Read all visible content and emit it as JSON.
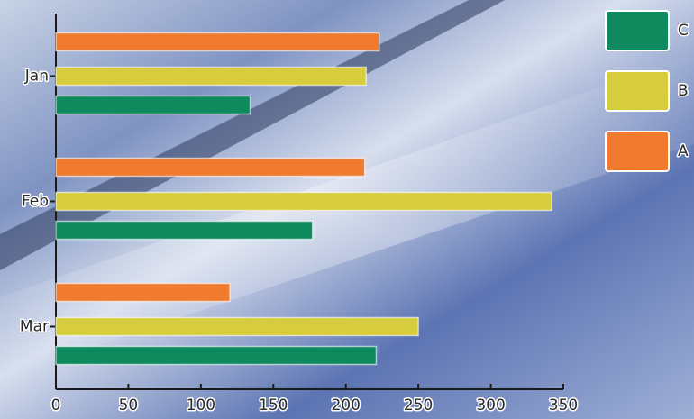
{
  "chart_data": {
    "type": "bar",
    "orientation": "horizontal",
    "categories": [
      "Jan",
      "Feb",
      "Mar"
    ],
    "series": [
      {
        "name": "A",
        "color": "#f07a2e",
        "values": [
          223,
          213,
          120
        ]
      },
      {
        "name": "B",
        "color": "#d6cc3c",
        "values": [
          214,
          342,
          250
        ]
      },
      {
        "name": "C",
        "color": "#0f8a5f",
        "values": [
          134,
          177,
          221
        ]
      }
    ],
    "xlim": [
      0,
      350
    ],
    "xticks": [
      0,
      50,
      100,
      150,
      200,
      250,
      300,
      350
    ],
    "legend": "top-right"
  }
}
